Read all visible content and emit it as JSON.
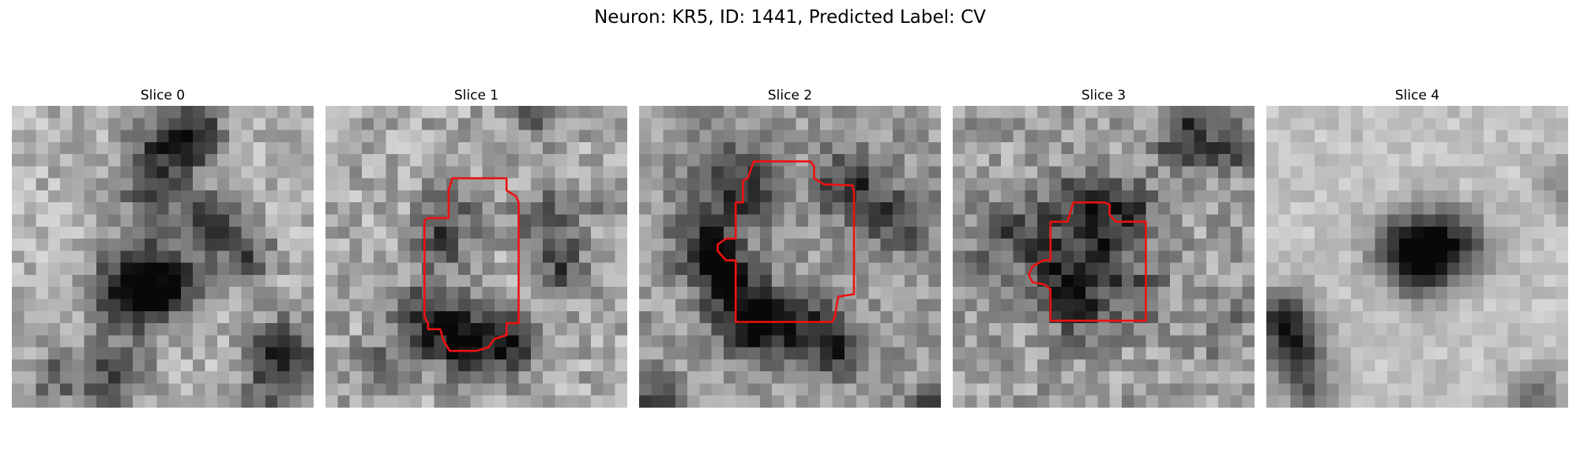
{
  "figure": {
    "title": "Neuron: KR5, ID: 1441, Predicted Label: CV",
    "contour_color": "#ee1111"
  },
  "slices": [
    {
      "label": "Slice 0",
      "has_contour": false
    },
    {
      "label": "Slice 1",
      "has_contour": true
    },
    {
      "label": "Slice 2",
      "has_contour": true
    },
    {
      "label": "Slice 3",
      "has_contour": true
    },
    {
      "label": "Slice 4",
      "has_contour": false
    }
  ]
}
